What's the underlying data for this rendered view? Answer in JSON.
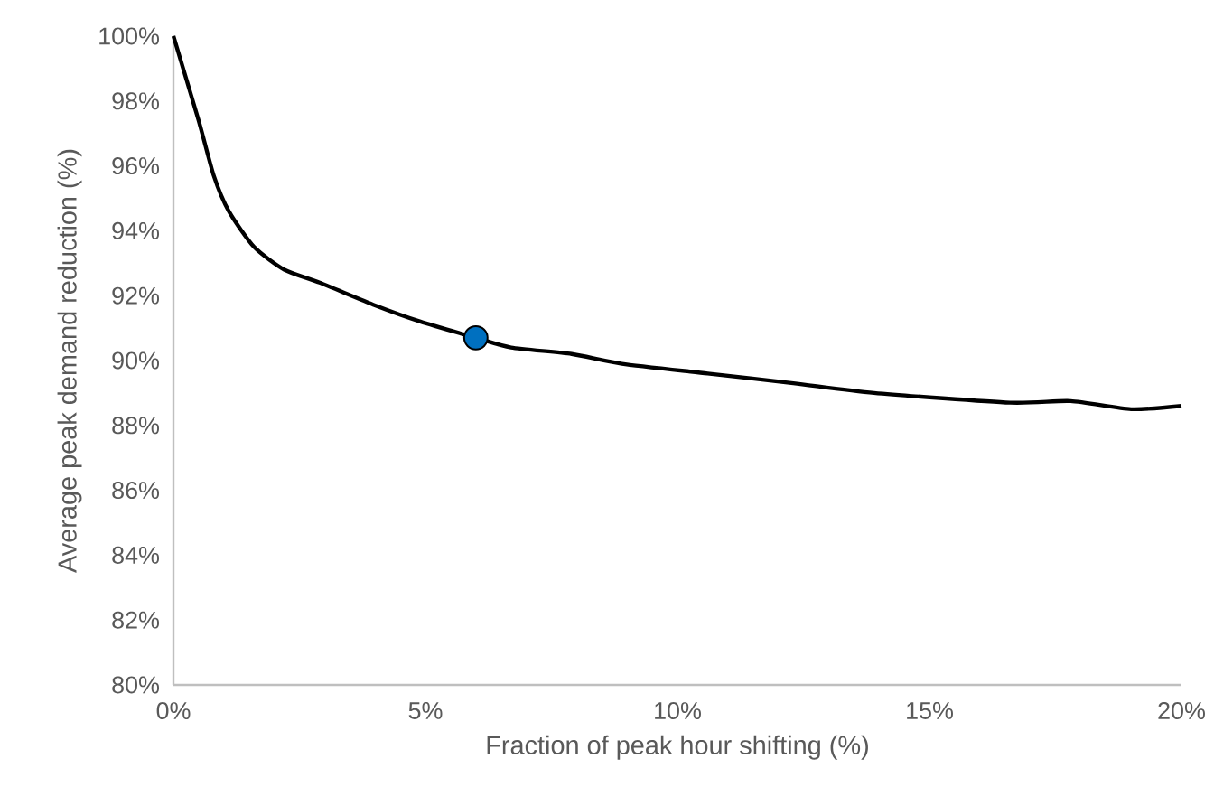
{
  "chart_data": {
    "type": "line",
    "xlabel": "Fraction of peak hour shifting (%)",
    "ylabel": "Average peak demand reduction (%)",
    "xlim": [
      0,
      20
    ],
    "ylim": [
      80,
      100
    ],
    "xticks": [
      {
        "value": 0,
        "label": "0%"
      },
      {
        "value": 5,
        "label": "5%"
      },
      {
        "value": 10,
        "label": "10%"
      },
      {
        "value": 15,
        "label": "15%"
      },
      {
        "value": 20,
        "label": "20%"
      }
    ],
    "yticks": [
      {
        "value": 80,
        "label": "80%"
      },
      {
        "value": 82,
        "label": "82%"
      },
      {
        "value": 84,
        "label": "84%"
      },
      {
        "value": 86,
        "label": "86%"
      },
      {
        "value": 88,
        "label": "88%"
      },
      {
        "value": 90,
        "label": "90%"
      },
      {
        "value": 92,
        "label": "92%"
      },
      {
        "value": 94,
        "label": "94%"
      },
      {
        "value": 96,
        "label": "96%"
      },
      {
        "value": 98,
        "label": "98%"
      },
      {
        "value": 100,
        "label": "100%"
      }
    ],
    "series": [
      {
        "color": "#000000",
        "marker": "none",
        "line_style": "solid",
        "x": [
          0,
          0.5,
          0.8,
          1.1,
          1.6,
          2.2,
          2.9,
          4.0,
          4.9,
          6.0,
          6.7,
          7.9,
          8.9,
          10.6,
          12.3,
          13.9,
          16.6,
          17.8,
          19.0,
          20
        ],
        "values": [
          100,
          97.4,
          95.7,
          94.6,
          93.5,
          92.8,
          92.4,
          91.7,
          91.2,
          90.7,
          90.4,
          90.2,
          89.9,
          89.6,
          89.3,
          89.0,
          88.7,
          88.75,
          88.5,
          88.6
        ]
      },
      {
        "type": "scatter",
        "color": "#0070c0",
        "marker": "circle",
        "x": [
          6.0
        ],
        "values": [
          90.7
        ]
      }
    ]
  }
}
